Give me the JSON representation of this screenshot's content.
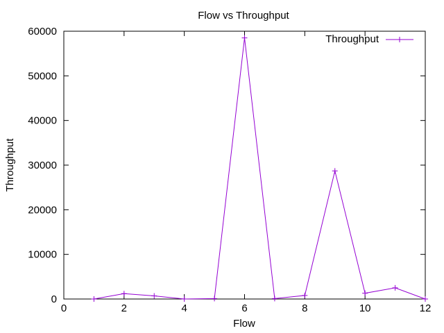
{
  "chart_data": {
    "type": "line",
    "title": "Flow vs Throughput",
    "xlabel": "Flow",
    "ylabel": "Throughput",
    "xlim": [
      0,
      12
    ],
    "ylim": [
      0,
      60000
    ],
    "x_ticks": [
      0,
      2,
      4,
      6,
      8,
      10,
      12
    ],
    "y_ticks": [
      0,
      10000,
      20000,
      30000,
      40000,
      50000,
      60000
    ],
    "grid": false,
    "legend": "top-right",
    "series": [
      {
        "name": "Throughput",
        "color": "#9400d3",
        "marker": "plus",
        "x": [
          1,
          2,
          3,
          4,
          5,
          6,
          7,
          8,
          9,
          10,
          11,
          12
        ],
        "y": [
          0,
          1200,
          700,
          0,
          100,
          58500,
          100,
          800,
          28700,
          1300,
          2500,
          0
        ]
      }
    ]
  }
}
